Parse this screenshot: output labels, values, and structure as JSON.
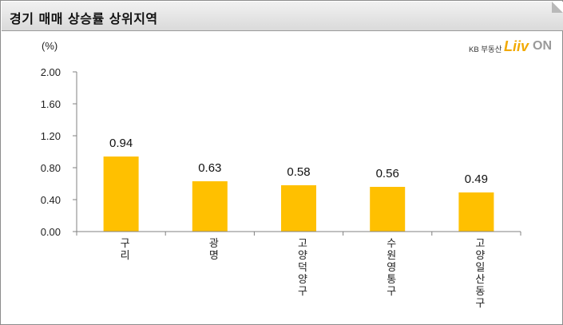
{
  "title": "경기 매매 상승률 상위지역",
  "logo": {
    "brand": "KB 부동산",
    "liiv": "Liiv",
    "on": "ON"
  },
  "colors": {
    "bar": "#ffc000",
    "axis": "#808080"
  },
  "chart_data": {
    "type": "bar",
    "ylabel": "(%)",
    "ylim": [
      0,
      2.0
    ],
    "yticks": [
      "0.00",
      "0.40",
      "0.80",
      "1.20",
      "1.60",
      "2.00"
    ],
    "categories": [
      [
        "구",
        "리"
      ],
      [
        "광",
        "명"
      ],
      [
        "고",
        "양",
        "덕",
        "양",
        "구"
      ],
      [
        "수",
        "원",
        "영",
        "통",
        "구"
      ],
      [
        "고",
        "양",
        "일",
        "산",
        "동",
        "구"
      ]
    ],
    "values": [
      0.94,
      0.63,
      0.58,
      0.56,
      0.49
    ],
    "value_labels": [
      "0.94",
      "0.63",
      "0.58",
      "0.56",
      "0.49"
    ],
    "grid": false,
    "legend": "none"
  }
}
